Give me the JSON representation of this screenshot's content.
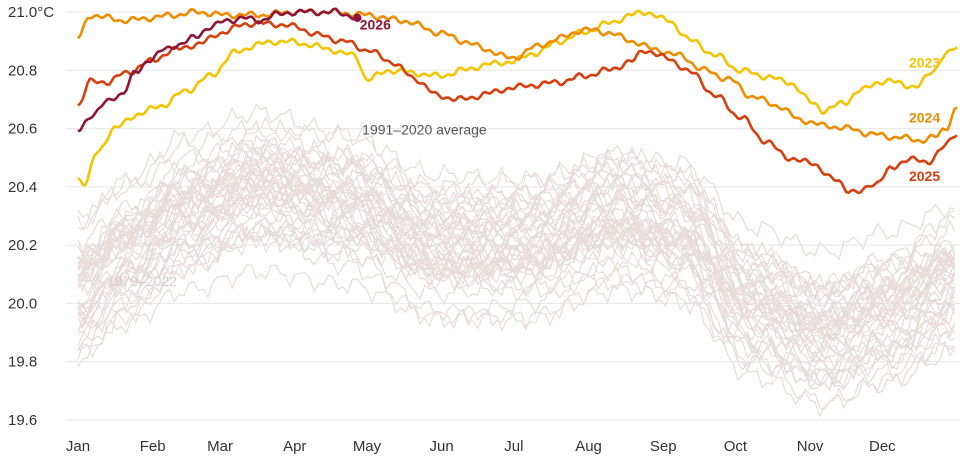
{
  "chart_data": {
    "type": "line",
    "title": "",
    "xlabel": "",
    "ylabel": "",
    "y_unit": "°C",
    "ylim": [
      19.6,
      21.0
    ],
    "xlim": [
      0,
      365
    ],
    "y_ticks": [
      19.6,
      19.8,
      20.0,
      20.2,
      20.4,
      20.6,
      20.8,
      21.0
    ],
    "y_tick_labels": [
      "19.6",
      "19.8",
      "20.0",
      "20.2",
      "20.4",
      "20.6",
      "20.8",
      "21.0°C"
    ],
    "x_ticks": [
      {
        "day": 0,
        "label": "Jan"
      },
      {
        "day": 31,
        "label": "Feb"
      },
      {
        "day": 59,
        "label": "Mar"
      },
      {
        "day": 90,
        "label": "Apr"
      },
      {
        "day": 120,
        "label": "May"
      },
      {
        "day": 151,
        "label": "Jun"
      },
      {
        "day": 181,
        "label": "Jul"
      },
      {
        "day": 212,
        "label": "Aug"
      },
      {
        "day": 243,
        "label": "Sep"
      },
      {
        "day": 273,
        "label": "Oct"
      },
      {
        "day": 304,
        "label": "Nov"
      },
      {
        "day": 334,
        "label": "Dec"
      }
    ],
    "grid": true,
    "colors": {
      "background_years": "#e6dcda",
      "average": "#555555",
      "y2023": "#f2c500",
      "y2024": "#f08c00",
      "y2025": "#d6400f",
      "y2026": "#8e1537",
      "label_1979_2022": "#d9cccb"
    },
    "background_band": {
      "label": "1979–2022",
      "center": [
        [
          0,
          20.05
        ],
        [
          20,
          20.18
        ],
        [
          45,
          20.32
        ],
        [
          75,
          20.4
        ],
        [
          110,
          20.35
        ],
        [
          150,
          20.2
        ],
        [
          185,
          20.2
        ],
        [
          225,
          20.3
        ],
        [
          250,
          20.25
        ],
        [
          280,
          20.0
        ],
        [
          310,
          19.9
        ],
        [
          335,
          19.97
        ],
        [
          365,
          20.08
        ]
      ],
      "spread": 0.22
    },
    "series": [
      {
        "name": "1991–2020 average",
        "key": "avg",
        "style": "dotted",
        "points": [
          [
            0,
            20.24
          ],
          [
            15,
            20.31
          ],
          [
            30,
            20.38
          ],
          [
            45,
            20.45
          ],
          [
            60,
            20.51
          ],
          [
            75,
            20.54
          ],
          [
            90,
            20.54
          ],
          [
            105,
            20.51
          ],
          [
            120,
            20.47
          ],
          [
            135,
            20.42
          ],
          [
            150,
            20.38
          ],
          [
            165,
            20.35
          ],
          [
            180,
            20.35
          ],
          [
            195,
            20.37
          ],
          [
            210,
            20.4
          ],
          [
            225,
            20.43
          ],
          [
            240,
            20.44
          ],
          [
            255,
            20.42
          ],
          [
            270,
            20.36
          ],
          [
            285,
            20.28
          ],
          [
            300,
            20.2
          ],
          [
            315,
            20.14
          ],
          [
            330,
            20.11
          ],
          [
            345,
            20.13
          ],
          [
            355,
            20.17
          ],
          [
            365,
            20.23
          ]
        ]
      },
      {
        "name": "2023",
        "key": "y2023",
        "points": [
          [
            0,
            20.43
          ],
          [
            3,
            20.41
          ],
          [
            8,
            20.52
          ],
          [
            15,
            20.6
          ],
          [
            25,
            20.65
          ],
          [
            35,
            20.68
          ],
          [
            45,
            20.73
          ],
          [
            55,
            20.78
          ],
          [
            65,
            20.86
          ],
          [
            75,
            20.89
          ],
          [
            85,
            20.9
          ],
          [
            95,
            20.89
          ],
          [
            105,
            20.87
          ],
          [
            115,
            20.85
          ],
          [
            120,
            20.77
          ],
          [
            130,
            20.8
          ],
          [
            140,
            20.79
          ],
          [
            150,
            20.78
          ],
          [
            160,
            20.8
          ],
          [
            170,
            20.82
          ],
          [
            180,
            20.83
          ],
          [
            190,
            20.86
          ],
          [
            200,
            20.9
          ],
          [
            210,
            20.93
          ],
          [
            220,
            20.96
          ],
          [
            230,
            20.99
          ],
          [
            236,
            21.0
          ],
          [
            245,
            20.97
          ],
          [
            255,
            20.9
          ],
          [
            265,
            20.85
          ],
          [
            275,
            20.8
          ],
          [
            285,
            20.78
          ],
          [
            295,
            20.76
          ],
          [
            305,
            20.69
          ],
          [
            310,
            20.66
          ],
          [
            318,
            20.69
          ],
          [
            325,
            20.73
          ],
          [
            332,
            20.76
          ],
          [
            340,
            20.76
          ],
          [
            348,
            20.74
          ],
          [
            355,
            20.8
          ],
          [
            360,
            20.85
          ],
          [
            365,
            20.88
          ]
        ]
      },
      {
        "name": "2024",
        "key": "y2024",
        "points": [
          [
            0,
            20.91
          ],
          [
            5,
            20.99
          ],
          [
            12,
            20.98
          ],
          [
            20,
            20.97
          ],
          [
            30,
            20.98
          ],
          [
            40,
            20.99
          ],
          [
            50,
            21.0
          ],
          [
            60,
            20.99
          ],
          [
            75,
            20.99
          ],
          [
            90,
            21.0
          ],
          [
            105,
            21.0
          ],
          [
            120,
            20.99
          ],
          [
            135,
            20.97
          ],
          [
            150,
            20.93
          ],
          [
            160,
            20.9
          ],
          [
            170,
            20.87
          ],
          [
            180,
            20.84
          ],
          [
            190,
            20.88
          ],
          [
            200,
            20.91
          ],
          [
            210,
            20.94
          ],
          [
            220,
            20.93
          ],
          [
            230,
            20.9
          ],
          [
            240,
            20.87
          ],
          [
            250,
            20.85
          ],
          [
            260,
            20.8
          ],
          [
            270,
            20.77
          ],
          [
            280,
            20.71
          ],
          [
            290,
            20.68
          ],
          [
            300,
            20.63
          ],
          [
            310,
            20.61
          ],
          [
            320,
            20.6
          ],
          [
            330,
            20.58
          ],
          [
            340,
            20.57
          ],
          [
            350,
            20.56
          ],
          [
            356,
            20.57
          ],
          [
            360,
            20.6
          ],
          [
            365,
            20.67
          ]
        ]
      },
      {
        "name": "2025",
        "key": "y2025",
        "points": [
          [
            0,
            20.68
          ],
          [
            5,
            20.76
          ],
          [
            12,
            20.76
          ],
          [
            20,
            20.79
          ],
          [
            30,
            20.83
          ],
          [
            40,
            20.87
          ],
          [
            50,
            20.89
          ],
          [
            60,
            20.93
          ],
          [
            70,
            20.96
          ],
          [
            80,
            20.96
          ],
          [
            90,
            20.95
          ],
          [
            100,
            20.92
          ],
          [
            110,
            20.9
          ],
          [
            120,
            20.87
          ],
          [
            130,
            20.83
          ],
          [
            140,
            20.77
          ],
          [
            150,
            20.71
          ],
          [
            160,
            20.7
          ],
          [
            170,
            20.72
          ],
          [
            180,
            20.74
          ],
          [
            190,
            20.75
          ],
          [
            200,
            20.76
          ],
          [
            210,
            20.78
          ],
          [
            220,
            20.8
          ],
          [
            230,
            20.83
          ],
          [
            235,
            20.87
          ],
          [
            245,
            20.84
          ],
          [
            255,
            20.79
          ],
          [
            265,
            20.71
          ],
          [
            275,
            20.64
          ],
          [
            285,
            20.56
          ],
          [
            295,
            20.5
          ],
          [
            305,
            20.48
          ],
          [
            315,
            20.42
          ],
          [
            320,
            20.39
          ],
          [
            325,
            20.38
          ],
          [
            330,
            20.41
          ],
          [
            338,
            20.46
          ],
          [
            345,
            20.5
          ],
          [
            352,
            20.48
          ],
          [
            360,
            20.54
          ],
          [
            365,
            20.58
          ]
        ]
      },
      {
        "name": "2026",
        "key": "y2026",
        "points": [
          [
            0,
            20.59
          ],
          [
            6,
            20.65
          ],
          [
            12,
            20.69
          ],
          [
            18,
            20.72
          ],
          [
            24,
            20.79
          ],
          [
            30,
            20.84
          ],
          [
            36,
            20.87
          ],
          [
            42,
            20.89
          ],
          [
            48,
            20.91
          ],
          [
            55,
            20.95
          ],
          [
            62,
            20.97
          ],
          [
            68,
            20.98
          ],
          [
            75,
            20.97
          ],
          [
            82,
            20.99
          ],
          [
            90,
            21.0
          ],
          [
            97,
            21.0
          ],
          [
            103,
            21.0
          ],
          [
            107,
            21.0
          ],
          [
            112,
            20.99
          ],
          [
            116,
            20.98
          ]
        ]
      }
    ],
    "labels": [
      {
        "text": "2026",
        "key": "y2026",
        "x": 117,
        "y": 20.94
      },
      {
        "text": "2023",
        "key": "y2023",
        "x": 358,
        "y": 20.81
      },
      {
        "text": "2024",
        "key": "y2024",
        "x": 358,
        "y": 20.62
      },
      {
        "text": "2025",
        "key": "y2025",
        "x": 358,
        "y": 20.42
      },
      {
        "text": "1991–2020 average",
        "key": "avg",
        "x": 118,
        "y": 20.58
      },
      {
        "text": "1979–2022",
        "key": "label_1979_2022",
        "x": 12,
        "y": 20.06
      }
    ]
  }
}
